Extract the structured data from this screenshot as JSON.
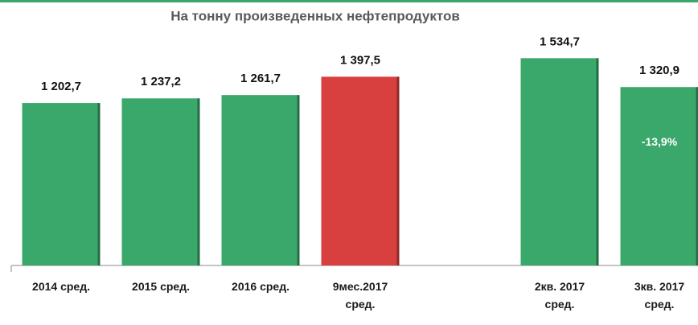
{
  "chart_data": {
    "type": "bar",
    "title": "На тонну произведенных нефтепродуктов",
    "categories": [
      "2014 сред.",
      "2015 сред.",
      "2016 сред.",
      "9мес.2017 сред.",
      null,
      "2кв. 2017 сред.",
      "3кв. 2017 сред."
    ],
    "values": [
      1202.7,
      1237.2,
      1261.7,
      1397.5,
      null,
      1534.7,
      1320.9
    ],
    "value_labels": [
      "1 202,7",
      "1 237,2",
      "1 261,7",
      "1 397,5",
      null,
      "1 534,7",
      "1 320,9"
    ],
    "colors": [
      "#3aa76b",
      "#3aa76b",
      "#3aa76b",
      "#d83f3f",
      null,
      "#3aa76b",
      "#3aa76b"
    ],
    "annotation": "-13,9%",
    "ylim": [
      0,
      1900
    ]
  }
}
